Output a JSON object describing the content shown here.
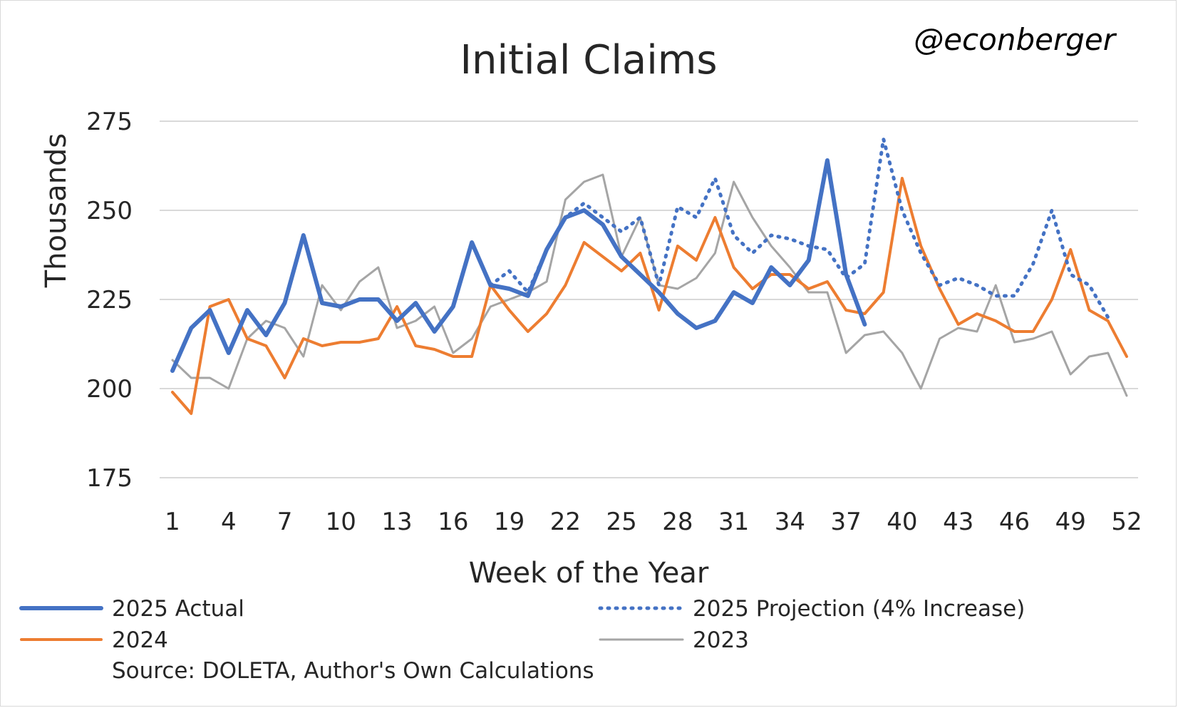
{
  "chart_data": {
    "type": "line",
    "title": "Initial Claims",
    "handle": "@econberger",
    "xlabel": "Week of the Year",
    "ylabel": "Thousands",
    "source": "Source: DOLETA, Author's Own Calculations",
    "ylim": [
      175,
      275
    ],
    "yticks": [
      "175",
      "200",
      "225",
      "250",
      "275"
    ],
    "xlim": [
      1,
      52
    ],
    "xticks": [
      "1",
      "4",
      "7",
      "10",
      "13",
      "16",
      "19",
      "22",
      "25",
      "28",
      "31",
      "34",
      "37",
      "40",
      "43",
      "46",
      "49",
      "52"
    ],
    "grid": "horizontal",
    "legend_position": "bottom",
    "series": [
      {
        "name": "2025 Actual",
        "color": "#4472c4",
        "style": "solid-thick",
        "x_start": 1,
        "values": [
          205,
          217,
          222,
          210,
          222,
          215,
          224,
          243,
          224,
          223,
          225,
          225,
          219,
          224,
          216,
          223,
          241,
          229,
          228,
          226,
          239,
          248,
          250,
          246,
          237,
          232,
          227,
          221,
          217,
          219,
          227,
          224,
          234,
          229,
          236,
          264,
          232,
          218
        ]
      },
      {
        "name": "2025 Projection (4% Increase)",
        "color": "#4472c4",
        "style": "dotted",
        "x_start": 18,
        "values": [
          229,
          233,
          227,
          239,
          248,
          252,
          248,
          244,
          248,
          229,
          251,
          248,
          259,
          243,
          238,
          243,
          242,
          240,
          239,
          231,
          235,
          270,
          250,
          238,
          229,
          231,
          229,
          226,
          226,
          235,
          250,
          232,
          229,
          220
        ]
      },
      {
        "name": "2024",
        "color": "#ed7d31",
        "style": "solid",
        "x_start": 1,
        "values": [
          199,
          193,
          223,
          225,
          214,
          212,
          203,
          214,
          212,
          213,
          213,
          214,
          223,
          212,
          211,
          209,
          209,
          229,
          222,
          216,
          221,
          229,
          241,
          237,
          233,
          238,
          222,
          240,
          236,
          248,
          234,
          228,
          232,
          232,
          228,
          230,
          222,
          221,
          227,
          259,
          240,
          228,
          218,
          221,
          219,
          216,
          216,
          225,
          239,
          222,
          219,
          209
        ]
      },
      {
        "name": "2023",
        "color": "#a5a5a5",
        "style": "solid-thin",
        "x_start": 1,
        "values": [
          208,
          203,
          203,
          200,
          214,
          219,
          217,
          209,
          229,
          222,
          230,
          234,
          217,
          219,
          223,
          210,
          214,
          223,
          225,
          227,
          230,
          253,
          258,
          260,
          237,
          248,
          229,
          228,
          231,
          238,
          258,
          248,
          240,
          234,
          227,
          227,
          210,
          215,
          216,
          210,
          200,
          214,
          217,
          216,
          229,
          213,
          214,
          216,
          204,
          209,
          210,
          198
        ]
      }
    ]
  }
}
